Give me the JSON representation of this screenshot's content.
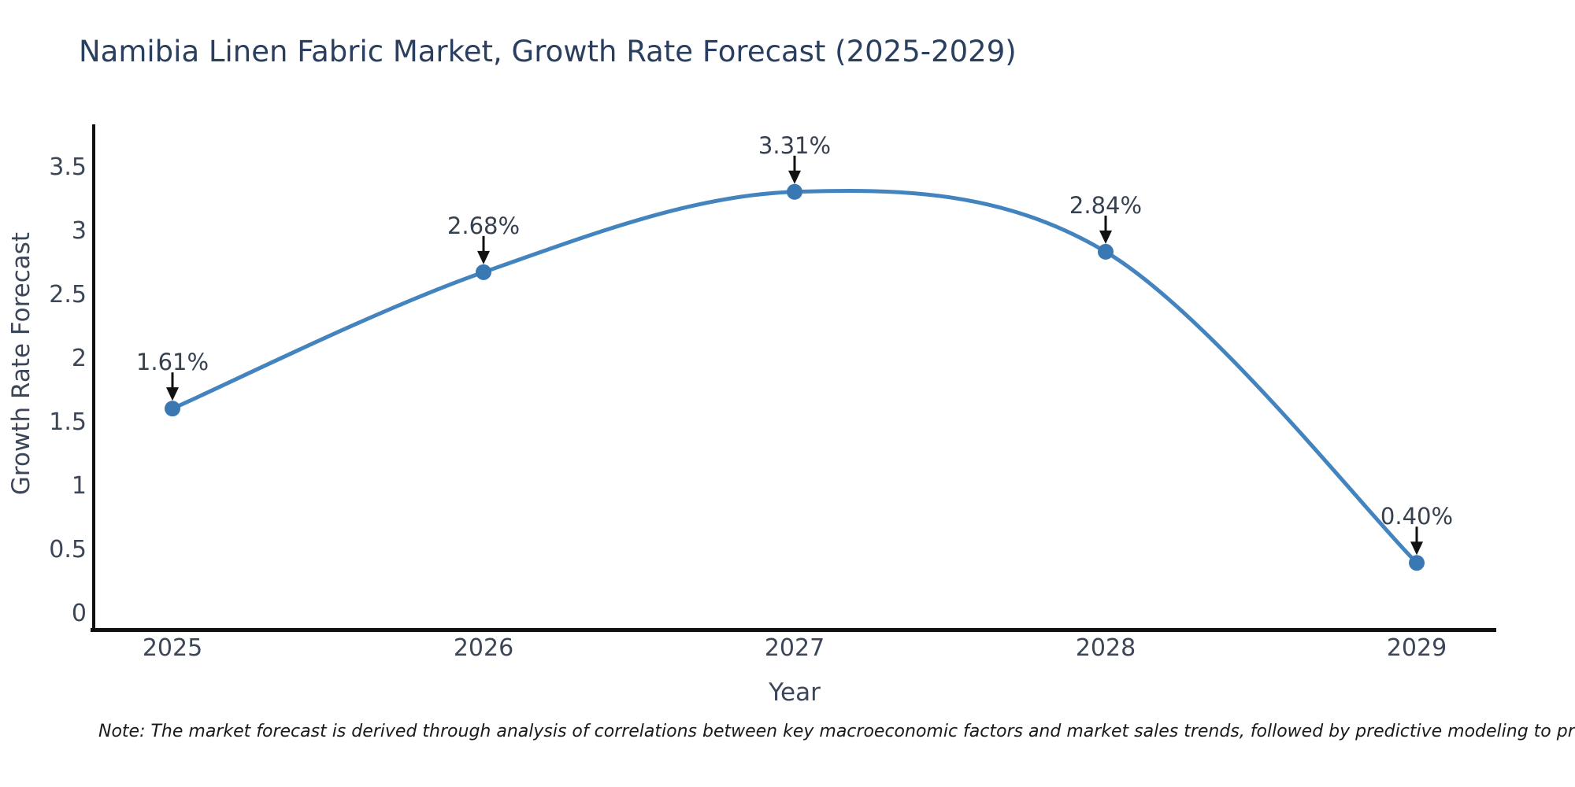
{
  "title": "Namibia Linen Fabric Market, Growth Rate Forecast (2025-2029)",
  "note": "Note: The market forecast is derived through analysis of correlations between key macroeconomic factors and market sales trends, followed by predictive modeling to project future sales",
  "colors": {
    "title_text": "#2a3f5f",
    "axis_line": "#111111",
    "tick_text": "#3d4656",
    "annotation_arrow": "#111111",
    "line": "#4484be",
    "marker": "#3a78b4"
  },
  "chart_data": {
    "type": "line",
    "title": "Namibia Linen Fabric Market, Growth Rate Forecast (2025-2029)",
    "xlabel": "Year",
    "ylabel": "Growth Rate Forecast",
    "x": [
      2025,
      2026,
      2027,
      2028,
      2029
    ],
    "values": [
      1.61,
      2.68,
      3.31,
      2.84,
      0.4
    ],
    "series": [
      {
        "name": "Growth Rate Forecast (%)",
        "values": [
          1.61,
          2.68,
          3.31,
          2.84,
          0.4
        ]
      }
    ],
    "point_labels": [
      "1.61%",
      "2.68%",
      "3.31%",
      "2.84%",
      "0.40%"
    ],
    "x_tick_labels": [
      "2025",
      "2026",
      "2027",
      "2028",
      "2029"
    ],
    "y_ticks": [
      0,
      0.5,
      1,
      1.5,
      2,
      2.5,
      3,
      3.5
    ],
    "y_tick_labels": [
      "0",
      "0.5",
      "1",
      "1.5",
      "2",
      "2.5",
      "3",
      "3.5"
    ],
    "ylim": [
      -0.14,
      3.84
    ],
    "grid": false,
    "legend_position": "none",
    "line_shape": "spline",
    "annotations_note": "each point labeled with percent value and a downward black arrow"
  }
}
